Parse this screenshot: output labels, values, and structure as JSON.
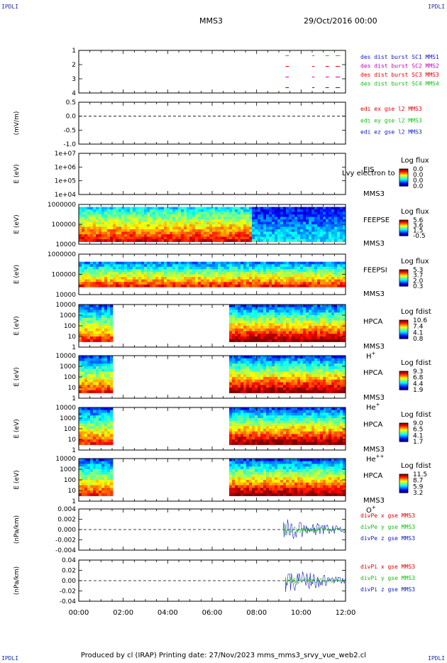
{
  "header": {
    "corner_label": "IPDLI",
    "spacecraft": "MMS3",
    "date": "29/Oct/2016 00:00"
  },
  "footer": {
    "text": "Produced by cl (IRAP)   Printing date: 27/Nov/2023   mms_mms3_srvy_vue_web2.cl"
  },
  "colors": {
    "red": "#e00000",
    "magenta": "#c000c0",
    "green": "#10c010",
    "blue": "#1020c0"
  },
  "chart_data": [
    {
      "id": "p1",
      "type": "line",
      "ylabel": "",
      "yticks": [
        "1",
        "2",
        "3",
        "4"
      ],
      "ylim": [
        0.5,
        4.5
      ],
      "series": [
        {
          "name": "des dist burst SC1 MMS1",
          "color": "#1020c0",
          "level": 1
        },
        {
          "name": "des dist burst SC2 MMS2",
          "color": "#c000c0",
          "level": 2
        },
        {
          "name": "des dist burst SC3 MMS3",
          "color": "#e00000",
          "level": 3
        },
        {
          "name": "des dist burst SC4 MMS4",
          "color": "#10c010",
          "level": 4
        }
      ],
      "burst_intervals_hours": [
        [
          9.3,
          9.45
        ],
        [
          10.5,
          10.6
        ],
        [
          11.1,
          11.25
        ],
        [
          11.55,
          11.75
        ]
      ]
    },
    {
      "id": "p2",
      "type": "line",
      "ylabel": "(mV/m)",
      "yticks": [
        "0.5",
        "0.0",
        "-0.5",
        "-1.0"
      ],
      "ylim": [
        -1.0,
        0.5
      ],
      "zero_line": true,
      "series": [
        {
          "name": "edi ex gse l2 MMS3",
          "color": "#e00000"
        },
        {
          "name": "edi ey gse l2 MMS3",
          "color": "#10c010"
        },
        {
          "name": "edi ez gse l2 MMS3",
          "color": "#1020c0"
        }
      ]
    },
    {
      "id": "p3",
      "type": "heatmap",
      "ylabel": "E (eV)",
      "yticks": [
        "1e+07",
        "1e+06",
        "1e+05",
        "1e+04"
      ],
      "instrument": "EIS",
      "spacecraft": "MMS3",
      "overlay_text": "Lvy electron to",
      "colorbar": {
        "title": "Log flux",
        "ticks": [
          "0.0",
          "0.0",
          "0.0",
          "0.0"
        ]
      },
      "coverage_hours": []
    },
    {
      "id": "p4",
      "type": "heatmap",
      "ylabel": "E (eV)",
      "yticks": [
        "1000000",
        "100000",
        "10000"
      ],
      "instrument": "FEEPSE",
      "spacecraft": "MMS3",
      "colorbar": {
        "title": "Log flux",
        "ticks": [
          "5.6",
          "3.6",
          "1.5",
          "-0.5"
        ]
      },
      "coverage_hours": [
        [
          0,
          12
        ]
      ],
      "transition_hour": 7.8
    },
    {
      "id": "p5",
      "type": "heatmap",
      "ylabel": "E (eV)",
      "yticks": [
        "1000000",
        "100000",
        "10000"
      ],
      "instrument": "FEEPSI",
      "spacecraft": "MMS3",
      "colorbar": {
        "title": "Log flux",
        "ticks": [
          "5.3",
          "3.7",
          "2.0",
          "0.3"
        ]
      },
      "coverage_hours": [
        [
          0,
          12
        ]
      ]
    },
    {
      "id": "p6",
      "type": "heatmap",
      "ylabel": "E (eV)",
      "yticks": [
        "10000",
        "1000",
        "100",
        "10",
        "1"
      ],
      "instrument": "HPCA",
      "spacecraft": "MMS3",
      "species": "H",
      "charge": "+",
      "colorbar": {
        "title": "Log fdist",
        "ticks": [
          "10.6",
          "7.4",
          "4.1",
          "0.8"
        ]
      },
      "coverage_hours": [
        [
          0,
          1.5
        ],
        [
          6.75,
          12
        ]
      ]
    },
    {
      "id": "p7",
      "type": "heatmap",
      "ylabel": "E (eV)",
      "yticks": [
        "10000",
        "1000",
        "100",
        "10",
        "1"
      ],
      "instrument": "HPCA",
      "spacecraft": "MMS3",
      "species": "He",
      "charge": "+",
      "colorbar": {
        "title": "Log fdist",
        "ticks": [
          "9.3",
          "6.8",
          "4.4",
          "1.9"
        ]
      },
      "coverage_hours": [
        [
          0,
          1.5
        ],
        [
          6.75,
          12
        ]
      ]
    },
    {
      "id": "p8",
      "type": "heatmap",
      "ylabel": "E (eV)",
      "yticks": [
        "10000",
        "1000",
        "100",
        "10",
        "1"
      ],
      "instrument": "HPCA",
      "spacecraft": "MMS3",
      "species": "He",
      "charge": "++",
      "colorbar": {
        "title": "Log fdist",
        "ticks": [
          "9.0",
          "6.5",
          "4.1",
          "1.7"
        ]
      },
      "coverage_hours": [
        [
          0,
          1.5
        ],
        [
          6.75,
          12
        ]
      ]
    },
    {
      "id": "p9",
      "type": "heatmap",
      "ylabel": "E (eV)",
      "yticks": [
        "10000",
        "1000",
        "100",
        "10",
        "1"
      ],
      "instrument": "HPCA",
      "spacecraft": "MMS3",
      "species": "O",
      "charge": "+",
      "colorbar": {
        "title": "Log fdist",
        "ticks": [
          "11.5",
          "8.7",
          "5.9",
          "3.2"
        ]
      },
      "coverage_hours": [
        [
          0,
          1.5
        ],
        [
          6.75,
          12
        ]
      ]
    },
    {
      "id": "p10",
      "type": "line",
      "ylabel": "(nPa/km)",
      "yticks": [
        "0.004",
        "0.002",
        "0.000",
        "-0.002",
        "-0.004"
      ],
      "ylim": [
        -0.005,
        0.005
      ],
      "zero_line": true,
      "signal_start_hour": 9.2,
      "series": [
        {
          "name": "divPe x gse MMS3",
          "color": "#e00000"
        },
        {
          "name": "divPe y gse MMS3",
          "color": "#10c010"
        },
        {
          "name": "divPe z gse MMS3",
          "color": "#1020c0"
        }
      ]
    },
    {
      "id": "p11",
      "type": "line",
      "ylabel": "(nPa/km)",
      "yticks": [
        "0.04",
        "0.02",
        "0.00",
        "-0.02",
        "-0.04"
      ],
      "ylim": [
        -0.05,
        0.05
      ],
      "zero_line": true,
      "signal_start_hour": 9.3,
      "series": [
        {
          "name": "divPi x gse MMS3",
          "color": "#e00000"
        },
        {
          "name": "divPi y gse MMS3",
          "color": "#10c010"
        },
        {
          "name": "divPi z gse MMS3",
          "color": "#1020c0"
        }
      ]
    }
  ],
  "time_axis": {
    "ticks": [
      "00:00",
      "02:00",
      "04:00",
      "06:00",
      "08:00",
      "10:00",
      "12:00"
    ],
    "range_hours": [
      0,
      12
    ]
  }
}
